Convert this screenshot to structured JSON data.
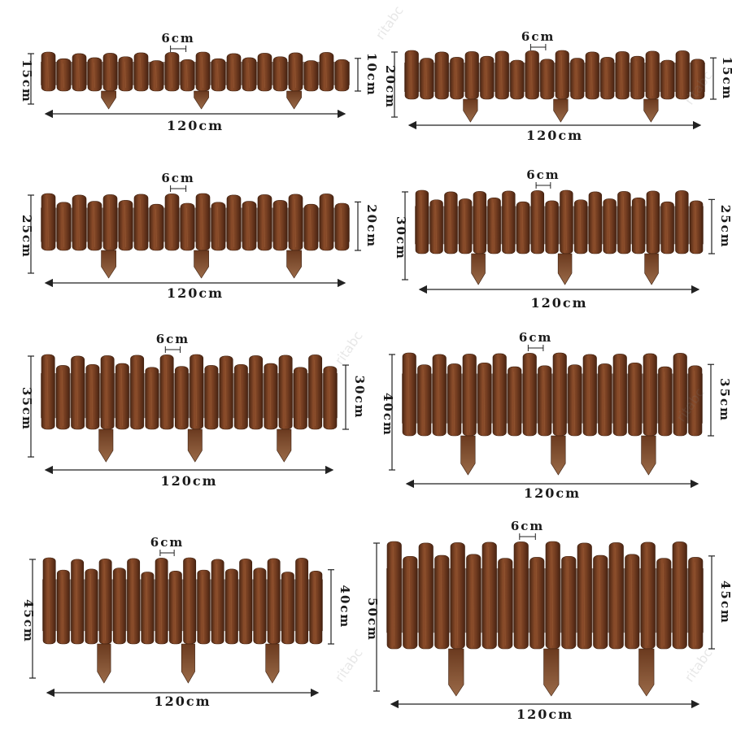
{
  "colors": {
    "wood_dark": "#5e3119",
    "wood_mid": "#7e4526",
    "wood_light": "#a0633a",
    "wood_grain": "#4a2412",
    "dimension_line": "#222222"
  },
  "watermark_text": "ritabc",
  "panels": [
    {
      "left_height": "15cm",
      "right_height": "10cm",
      "picket_width": "6cm",
      "length": "120cm",
      "tall_ratio": 0.22,
      "short_ratio": 0.15
    },
    {
      "left_height": "20cm",
      "right_height": "15cm",
      "picket_width": "6cm",
      "length": "120cm",
      "tall_ratio": 0.29,
      "short_ratio": 0.22
    },
    {
      "left_height": "25cm",
      "right_height": "20cm",
      "picket_width": "6cm",
      "length": "120cm",
      "tall_ratio": 0.33,
      "short_ratio": 0.27
    },
    {
      "left_height": "30cm",
      "right_height": "25cm",
      "picket_width": "6cm",
      "length": "120cm",
      "tall_ratio": 0.37,
      "short_ratio": 0.31
    },
    {
      "left_height": "35cm",
      "right_height": "30cm",
      "picket_width": "6cm",
      "length": "120cm",
      "tall_ratio": 0.44,
      "short_ratio": 0.38
    },
    {
      "left_height": "40cm",
      "right_height": "35cm",
      "picket_width": "6cm",
      "length": "120cm",
      "tall_ratio": 0.49,
      "short_ratio": 0.43
    },
    {
      "left_height": "45cm",
      "right_height": "40cm",
      "picket_width": "6cm",
      "length": "120cm",
      "tall_ratio": 0.55,
      "short_ratio": 0.49
    },
    {
      "left_height": "50cm",
      "right_height": "45cm",
      "picket_width": "6cm",
      "length": "120cm",
      "tall_ratio": 0.61,
      "short_ratio": 0.55
    }
  ]
}
